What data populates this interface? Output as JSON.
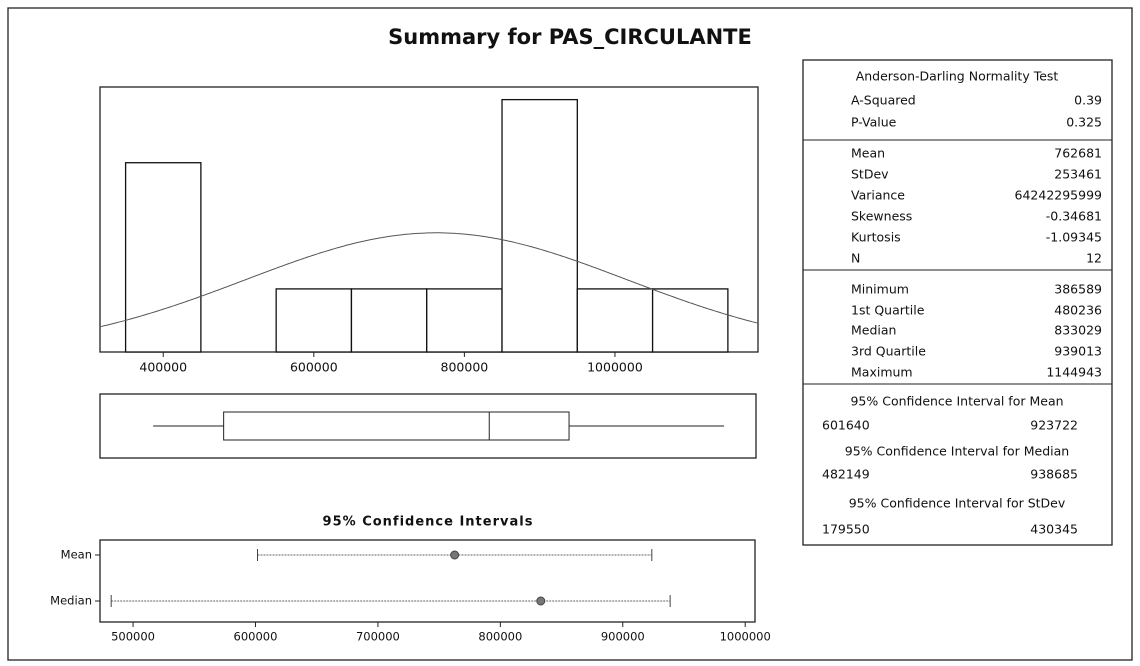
{
  "title": "Summary for PAS_CIRCULANTE",
  "chart_data": [
    {
      "type": "histogram",
      "bins": [
        350000,
        450000,
        550000,
        650000,
        750000,
        850000,
        950000,
        1050000,
        1150000
      ],
      "values": [
        3,
        0,
        1,
        1,
        1,
        4,
        1,
        1
      ],
      "color": "#ffffff",
      "xlim": [
        316000,
        1190000
      ],
      "xticks": [
        400000,
        600000,
        800000,
        1000000
      ],
      "ylim": [
        0,
        4.2
      ]
    },
    {
      "type": "interval",
      "title": "95% Confidence Intervals",
      "categories": [
        "Mean",
        "Median"
      ],
      "xlim": [
        473000,
        1008000
      ],
      "xticks": [
        500000,
        600000,
        700000,
        800000,
        900000,
        1000000
      ]
    }
  ],
  "table": {
    "normality_title": "Anderson-Darling Normality Test",
    "normality": [
      [
        "A-Squared",
        0.39
      ],
      [
        "P-Value",
        0.325
      ]
    ],
    "moments": [
      [
        "Mean",
        762681
      ],
      [
        "StDev",
        253461
      ],
      [
        "Variance",
        64242295999
      ],
      [
        "Skewness",
        -0.34681
      ],
      [
        "Kurtosis",
        -1.09345
      ],
      [
        "N",
        12
      ]
    ],
    "quantiles": [
      [
        "Minimum",
        386589
      ],
      [
        "1st Quartile",
        480236
      ],
      [
        "Median",
        833029
      ],
      [
        "3rd Quartile",
        939013
      ],
      [
        "Maximum",
        1144943
      ]
    ],
    "intervals": [
      {
        "title": "95% Confidence Interval for Mean",
        "values": [
          601640,
          923722
        ]
      },
      {
        "title": "95% Confidence Interval for Median",
        "values": [
          482149,
          938685
        ]
      },
      {
        "title": "95% Confidence Interval for StDev",
        "values": [
          179550,
          430345
        ]
      }
    ]
  }
}
